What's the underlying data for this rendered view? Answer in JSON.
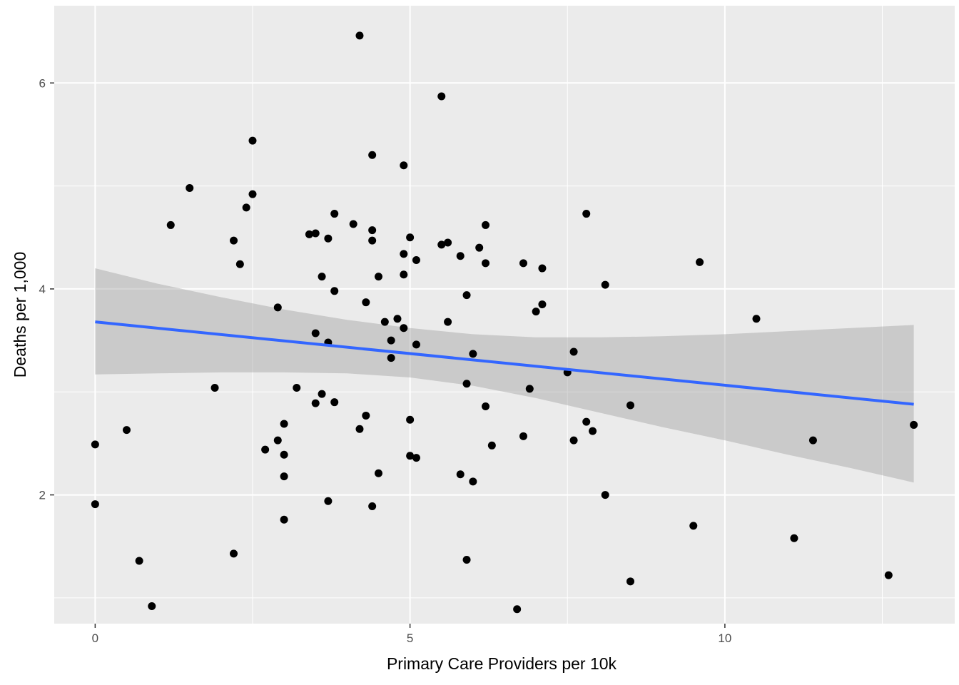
{
  "chart_data": {
    "type": "scatter",
    "title": "",
    "xlabel": "Primary Care Providers per 10k",
    "ylabel": "Deaths per 1,000",
    "xlim": [
      -0.65,
      13.65
    ],
    "ylim": [
      0.75,
      6.75
    ],
    "x_ticks": [
      0,
      5,
      10
    ],
    "y_ticks": [
      2,
      4,
      6
    ],
    "grid": true,
    "legend": "none",
    "colors": {
      "panel": "#ebebeb",
      "grid": "#ffffff",
      "points": "#000000",
      "fit_line": "#3366ff",
      "ribbon": "#c8c8c8"
    },
    "points": [
      [
        0.0,
        2.49
      ],
      [
        0.0,
        1.91
      ],
      [
        0.5,
        2.63
      ],
      [
        0.7,
        1.36
      ],
      [
        0.9,
        0.92
      ],
      [
        1.2,
        4.62
      ],
      [
        1.5,
        4.98
      ],
      [
        1.9,
        3.04
      ],
      [
        2.2,
        4.47
      ],
      [
        2.2,
        1.43
      ],
      [
        2.3,
        4.24
      ],
      [
        2.4,
        4.79
      ],
      [
        2.5,
        5.44
      ],
      [
        2.5,
        4.92
      ],
      [
        2.7,
        2.44
      ],
      [
        2.9,
        3.82
      ],
      [
        2.9,
        2.53
      ],
      [
        3.0,
        2.69
      ],
      [
        3.0,
        2.39
      ],
      [
        3.0,
        2.18
      ],
      [
        3.0,
        1.76
      ],
      [
        3.2,
        3.04
      ],
      [
        3.4,
        4.53
      ],
      [
        3.5,
        4.54
      ],
      [
        3.5,
        3.57
      ],
      [
        3.5,
        2.89
      ],
      [
        3.6,
        4.12
      ],
      [
        3.6,
        2.98
      ],
      [
        3.7,
        4.49
      ],
      [
        3.7,
        3.48
      ],
      [
        3.7,
        1.94
      ],
      [
        3.8,
        4.73
      ],
      [
        3.8,
        3.98
      ],
      [
        3.8,
        2.9
      ],
      [
        4.1,
        4.63
      ],
      [
        4.2,
        6.46
      ],
      [
        4.2,
        2.64
      ],
      [
        4.3,
        3.87
      ],
      [
        4.3,
        2.77
      ],
      [
        4.4,
        5.3
      ],
      [
        4.4,
        4.57
      ],
      [
        4.4,
        4.47
      ],
      [
        4.4,
        1.89
      ],
      [
        4.5,
        4.12
      ],
      [
        4.5,
        2.21
      ],
      [
        4.6,
        3.68
      ],
      [
        4.7,
        3.5
      ],
      [
        4.7,
        3.33
      ],
      [
        4.8,
        3.71
      ],
      [
        4.9,
        5.2
      ],
      [
        4.9,
        4.34
      ],
      [
        4.9,
        4.14
      ],
      [
        4.9,
        3.62
      ],
      [
        5.0,
        4.5
      ],
      [
        5.0,
        2.73
      ],
      [
        5.0,
        2.38
      ],
      [
        5.1,
        4.28
      ],
      [
        5.1,
        3.46
      ],
      [
        5.1,
        2.36
      ],
      [
        5.5,
        5.87
      ],
      [
        5.5,
        4.43
      ],
      [
        5.6,
        4.45
      ],
      [
        5.6,
        3.68
      ],
      [
        5.8,
        4.32
      ],
      [
        5.8,
        2.2
      ],
      [
        5.9,
        3.94
      ],
      [
        5.9,
        3.08
      ],
      [
        5.9,
        1.37
      ],
      [
        6.0,
        3.37
      ],
      [
        6.0,
        2.13
      ],
      [
        6.1,
        4.4
      ],
      [
        6.2,
        4.62
      ],
      [
        6.2,
        4.25
      ],
      [
        6.2,
        2.86
      ],
      [
        6.3,
        2.48
      ],
      [
        6.7,
        0.89
      ],
      [
        6.8,
        4.25
      ],
      [
        6.8,
        2.57
      ],
      [
        6.9,
        3.03
      ],
      [
        7.0,
        3.78
      ],
      [
        7.1,
        4.2
      ],
      [
        7.1,
        3.85
      ],
      [
        7.5,
        3.19
      ],
      [
        7.6,
        3.39
      ],
      [
        7.6,
        2.53
      ],
      [
        7.8,
        4.73
      ],
      [
        7.8,
        2.71
      ],
      [
        7.9,
        2.62
      ],
      [
        8.1,
        4.04
      ],
      [
        8.1,
        2.0
      ],
      [
        8.5,
        2.87
      ],
      [
        8.5,
        1.16
      ],
      [
        9.5,
        1.7
      ],
      [
        9.6,
        4.26
      ],
      [
        10.5,
        3.71
      ],
      [
        11.1,
        1.58
      ],
      [
        11.4,
        2.53
      ],
      [
        12.6,
        1.22
      ],
      [
        13.0,
        2.68
      ]
    ],
    "fit": {
      "x": [
        0.0,
        13.0
      ],
      "y": [
        3.68,
        2.88
      ]
    },
    "ribbon": {
      "x": [
        0,
        1,
        2,
        3,
        4,
        5,
        6,
        7,
        8,
        9,
        10,
        11,
        12,
        13
      ],
      "lower": [
        3.17,
        3.18,
        3.19,
        3.19,
        3.18,
        3.14,
        3.06,
        2.94,
        2.8,
        2.66,
        2.53,
        2.39,
        2.26,
        2.12
      ],
      "upper": [
        4.2,
        4.05,
        3.92,
        3.8,
        3.7,
        3.62,
        3.56,
        3.53,
        3.53,
        3.54,
        3.56,
        3.59,
        3.62,
        3.65
      ]
    }
  }
}
